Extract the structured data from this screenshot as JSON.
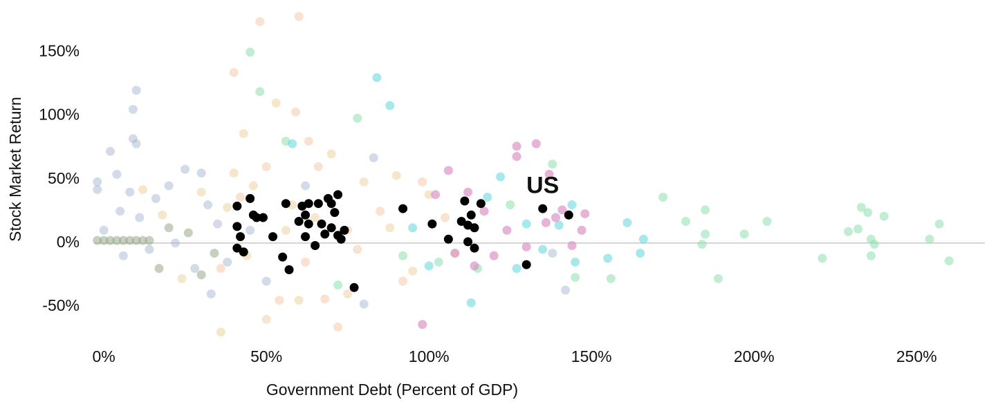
{
  "chart_data": {
    "type": "scatter",
    "x_label": "Government Debt (Percent of GDP)",
    "y_label": "Stock Market Return",
    "xlim": [
      -3,
      271
    ],
    "ylim": [
      -75,
      185
    ],
    "xticks": [
      {
        "value": 0,
        "label": "0%"
      },
      {
        "value": 50,
        "label": "50%"
      },
      {
        "value": 100,
        "label": "100%"
      },
      {
        "value": 150,
        "label": "150%"
      },
      {
        "value": 200,
        "label": "200%"
      },
      {
        "value": 250,
        "label": "250%"
      }
    ],
    "yticks": [
      {
        "value": -50,
        "label": "-50%"
      },
      {
        "value": 0,
        "label": "0%"
      },
      {
        "value": 50,
        "label": "50%"
      },
      {
        "value": 100,
        "label": "100%"
      },
      {
        "value": 150,
        "label": "150%"
      }
    ],
    "grid": false,
    "zero_line": true,
    "annotations": [
      {
        "text": "US",
        "x": 135,
        "y": 44
      }
    ],
    "series": [
      {
        "color": "#9fb0cc",
        "opacity": 0.45,
        "x": [
          -2,
          -2,
          0,
          2,
          4,
          5,
          6,
          8,
          9,
          10,
          9,
          10,
          11,
          14,
          16,
          20,
          22,
          25,
          28,
          30,
          32,
          33,
          35,
          38,
          45,
          50,
          62,
          80,
          83,
          138,
          142
        ],
        "values": [
          48,
          42,
          10,
          72,
          54,
          25,
          -10,
          40,
          105,
          120,
          82,
          78,
          20,
          -5,
          35,
          45,
          0,
          58,
          -20,
          55,
          30,
          -40,
          15,
          -15,
          10,
          -30,
          45,
          -48,
          67,
          -8,
          -37
        ]
      },
      {
        "color": "#e8c98e",
        "opacity": 0.45,
        "x": [
          12,
          18,
          24,
          30,
          36,
          38,
          40,
          43,
          44,
          46,
          50,
          53,
          56,
          58,
          60,
          65,
          70,
          75,
          80,
          88,
          90,
          95,
          100,
          108
        ],
        "values": [
          42,
          22,
          -28,
          40,
          -70,
          28,
          55,
          86,
          -10,
          45,
          -60,
          110,
          10,
          30,
          -45,
          20,
          70,
          -40,
          48,
          12,
          53,
          -22,
          38,
          -8
        ]
      },
      {
        "color": "#f4bf98",
        "opacity": 0.45,
        "x": [
          36,
          40,
          42,
          48,
          50,
          54,
          59,
          60,
          62,
          63,
          66,
          68,
          72,
          75,
          78,
          85,
          92,
          98,
          105
        ],
        "values": [
          -20,
          134,
          36,
          174,
          60,
          -45,
          103,
          178,
          -15,
          80,
          60,
          -44,
          -66,
          10,
          -5,
          25,
          -30,
          48,
          20
        ]
      },
      {
        "color": "#8ee0ae",
        "opacity": 0.55,
        "x": [
          45,
          48,
          56,
          72,
          78,
          92,
          103,
          115,
          125,
          138,
          145,
          156,
          172,
          179,
          184,
          185,
          185,
          189,
          197,
          204,
          221,
          229,
          232,
          233,
          235,
          236,
          236,
          237,
          240,
          254,
          257,
          260
        ],
        "values": [
          150,
          119,
          80,
          -33,
          98,
          -10,
          -15,
          -20,
          30,
          62,
          -27,
          -28,
          36,
          17,
          -1,
          26,
          7,
          -28,
          7,
          17,
          -12,
          9,
          11,
          28,
          24,
          3,
          -10,
          -1,
          21,
          3,
          15,
          -14
        ]
      },
      {
        "color": "#5fd6de",
        "opacity": 0.55,
        "x": [
          58,
          84,
          88,
          95,
          100,
          113,
          118,
          122,
          127,
          130,
          135,
          140,
          144,
          145,
          155,
          161,
          165,
          166
        ],
        "values": [
          78,
          130,
          108,
          12,
          -18,
          -47,
          36,
          52,
          -20,
          15,
          -5,
          14,
          30,
          -15,
          -12,
          16,
          -8,
          3
        ]
      },
      {
        "color": "#d98cc0",
        "opacity": 0.65,
        "x": [
          98,
          102,
          106,
          108,
          112,
          114,
          117,
          120,
          124,
          127,
          127,
          130,
          133,
          136,
          137,
          139,
          141,
          144,
          147,
          148
        ],
        "values": [
          -64,
          38,
          57,
          -8,
          40,
          -18,
          25,
          -10,
          10,
          76,
          68,
          -3,
          78,
          16,
          54,
          20,
          26,
          -2,
          10,
          23
        ]
      },
      {
        "color": "#8f9f80",
        "opacity": 0.5,
        "x": [
          -2,
          0,
          2,
          4,
          6,
          8,
          10,
          12,
          14,
          17,
          20,
          26,
          30,
          34
        ],
        "values": [
          2,
          2,
          2,
          2,
          2,
          2,
          2,
          2,
          2,
          -20,
          12,
          8,
          -25,
          -8
        ]
      },
      {
        "color": "#000000",
        "opacity": 1,
        "x": [
          41,
          45,
          46,
          47,
          49,
          52,
          41,
          42,
          41,
          43,
          56,
          55,
          57,
          60,
          61,
          62,
          63,
          63,
          62,
          65,
          66,
          67,
          68,
          69,
          70,
          70,
          71,
          72,
          72,
          73,
          74,
          77,
          92,
          101,
          106,
          110,
          111,
          112,
          112,
          113,
          114,
          114,
          116,
          130,
          135,
          143
        ],
        "values": [
          29,
          35,
          22,
          20,
          20,
          5,
          13,
          5,
          -4,
          -7,
          31,
          -11,
          -21,
          17,
          29,
          22,
          31,
          15,
          5,
          -2,
          31,
          15,
          7,
          35,
          31,
          12,
          24,
          38,
          6,
          3,
          10,
          -35,
          27,
          15,
          3,
          17,
          33,
          14,
          1,
          22,
          12,
          -4,
          31,
          -17,
          27,
          22
        ]
      }
    ]
  }
}
